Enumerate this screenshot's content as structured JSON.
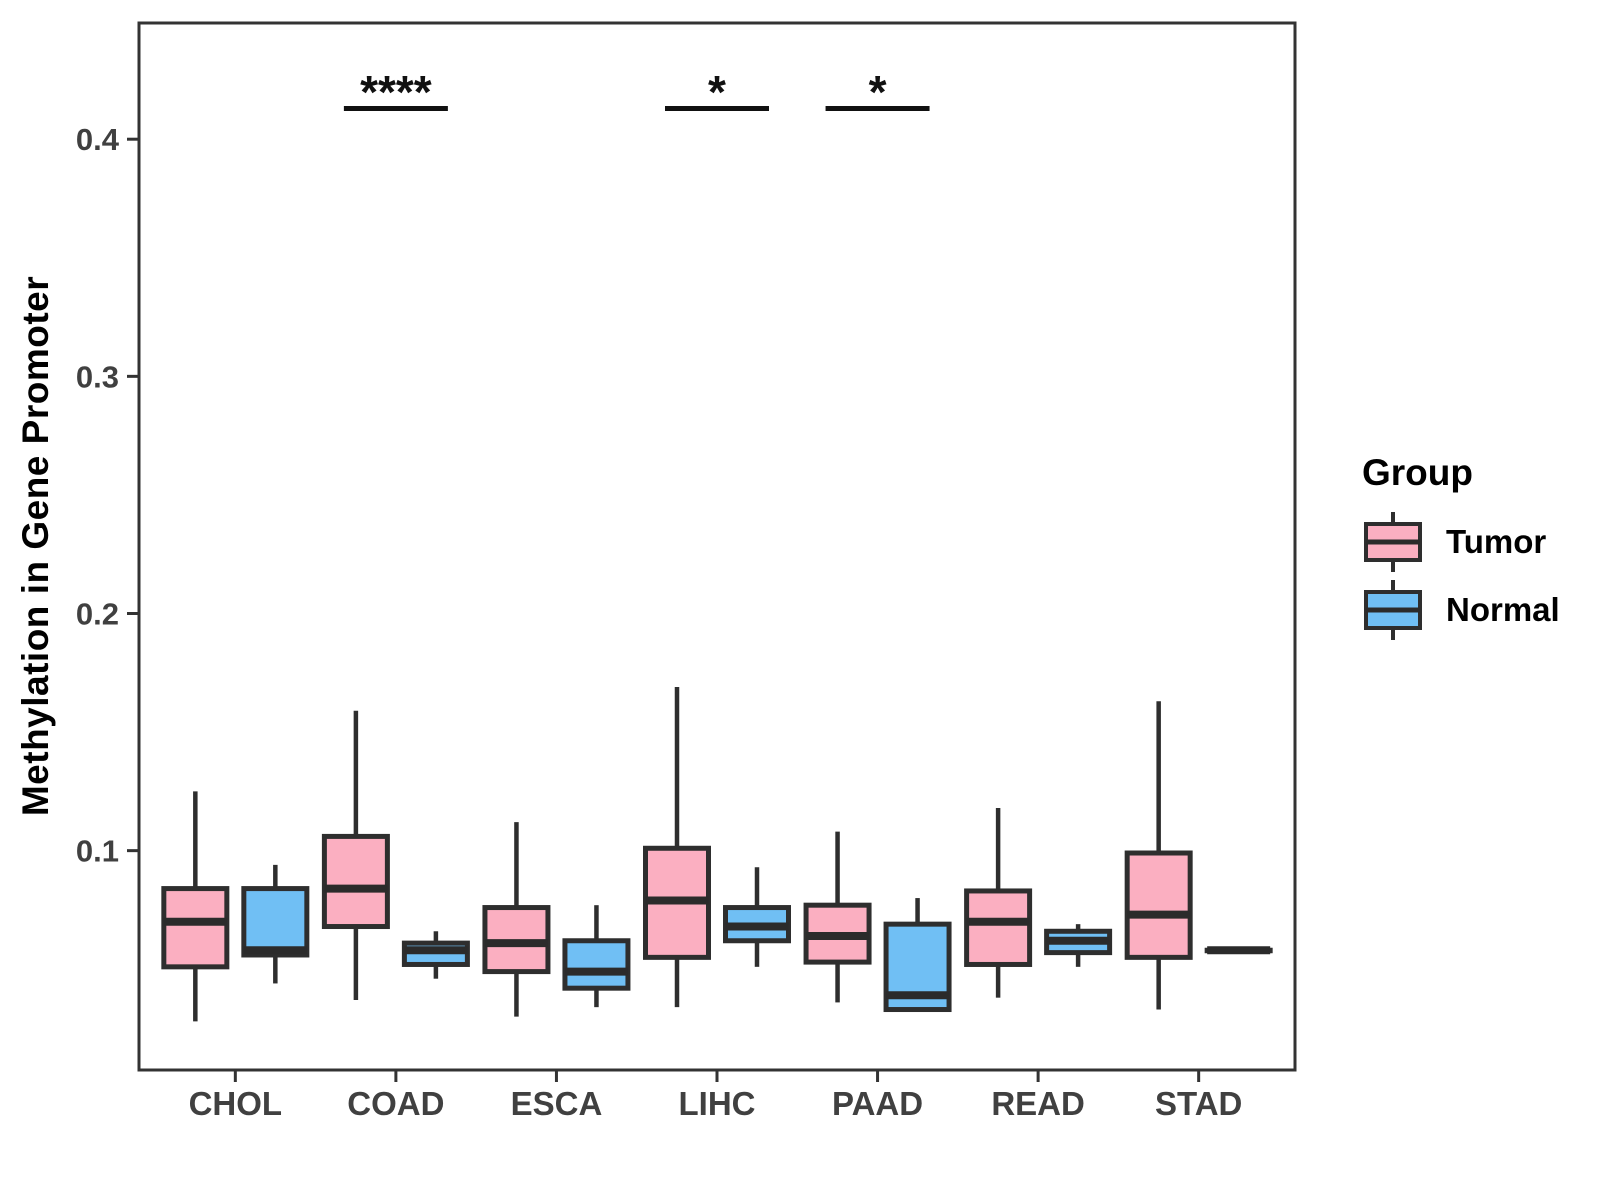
{
  "figure": {
    "background": "#ffffff",
    "y_axis": {
      "label": "Methylation in Gene Promoter",
      "tick_labels": [
        "0.1",
        "0.2",
        "0.3",
        "0.4"
      ]
    },
    "x_axis": {
      "tick_labels": [
        "CHOL",
        "COAD",
        "ESCA",
        "LIHC",
        "PAAD",
        "READ",
        "STAD"
      ]
    },
    "legend": {
      "title": "Group",
      "items": [
        {
          "label": "Tumor",
          "color": "#FBAFC1"
        },
        {
          "label": "Normal",
          "color": "#70BFF4"
        }
      ]
    },
    "colors": {
      "tumor_fill": "#FBAFC1",
      "normal_fill": "#70BFF4",
      "box_stroke": "#2E2E2E",
      "median_stroke": "#2B2B2B",
      "axis_stroke": "#333333",
      "tick_label_color": "#404040",
      "significance_color": "#111111"
    }
  },
  "chart_data": {
    "type": "boxplot",
    "title": "",
    "xlabel": "",
    "ylabel": "Methylation in Gene Promoter",
    "categories": [
      "CHOL",
      "COAD",
      "ESCA",
      "LIHC",
      "PAAD",
      "READ",
      "STAD"
    ],
    "groups": [
      "Tumor",
      "Normal"
    ],
    "yticks": [
      0.1,
      0.2,
      0.3,
      0.4
    ],
    "ylim": [
      0.0075,
      0.449
    ],
    "grid": false,
    "legend_position": "right",
    "series": [
      {
        "name": "Tumor",
        "color": "#FBAFC1",
        "boxes": [
          {
            "category": "CHOL",
            "min": 0.028,
            "q1": 0.051,
            "median": 0.07,
            "q3": 0.084,
            "max": 0.125
          },
          {
            "category": "COAD",
            "min": 0.037,
            "q1": 0.068,
            "median": 0.084,
            "q3": 0.106,
            "max": 0.159
          },
          {
            "category": "ESCA",
            "min": 0.03,
            "q1": 0.049,
            "median": 0.061,
            "q3": 0.076,
            "max": 0.112
          },
          {
            "category": "LIHC",
            "min": 0.034,
            "q1": 0.055,
            "median": 0.079,
            "q3": 0.101,
            "max": 0.169
          },
          {
            "category": "PAAD",
            "min": 0.036,
            "q1": 0.053,
            "median": 0.064,
            "q3": 0.077,
            "max": 0.108
          },
          {
            "category": "READ",
            "min": 0.038,
            "q1": 0.052,
            "median": 0.07,
            "q3": 0.083,
            "max": 0.118
          },
          {
            "category": "STAD",
            "min": 0.033,
            "q1": 0.055,
            "median": 0.073,
            "q3": 0.099,
            "max": 0.163
          }
        ]
      },
      {
        "name": "Normal",
        "color": "#70BFF4",
        "boxes": [
          {
            "category": "CHOL",
            "min": 0.044,
            "q1": 0.056,
            "median": 0.058,
            "q3": 0.084,
            "max": 0.094
          },
          {
            "category": "COAD",
            "min": 0.046,
            "q1": 0.052,
            "median": 0.058,
            "q3": 0.061,
            "max": 0.066
          },
          {
            "category": "ESCA",
            "min": 0.034,
            "q1": 0.042,
            "median": 0.049,
            "q3": 0.062,
            "max": 0.077
          },
          {
            "category": "LIHC",
            "min": 0.051,
            "q1": 0.062,
            "median": 0.068,
            "q3": 0.076,
            "max": 0.093
          },
          {
            "category": "PAAD",
            "min": 0.033,
            "q1": 0.033,
            "median": 0.039,
            "q3": 0.069,
            "max": 0.08
          },
          {
            "category": "READ",
            "min": 0.051,
            "q1": 0.057,
            "median": 0.062,
            "q3": 0.066,
            "max": 0.069
          },
          {
            "category": "STAD",
            "min": 0.058,
            "q1": 0.058,
            "median": 0.058,
            "q3": 0.058,
            "max": 0.058
          }
        ]
      }
    ],
    "significance": [
      {
        "category": "COAD",
        "label": "****"
      },
      {
        "category": "LIHC",
        "label": "*"
      },
      {
        "category": "PAAD",
        "label": "*"
      }
    ]
  }
}
